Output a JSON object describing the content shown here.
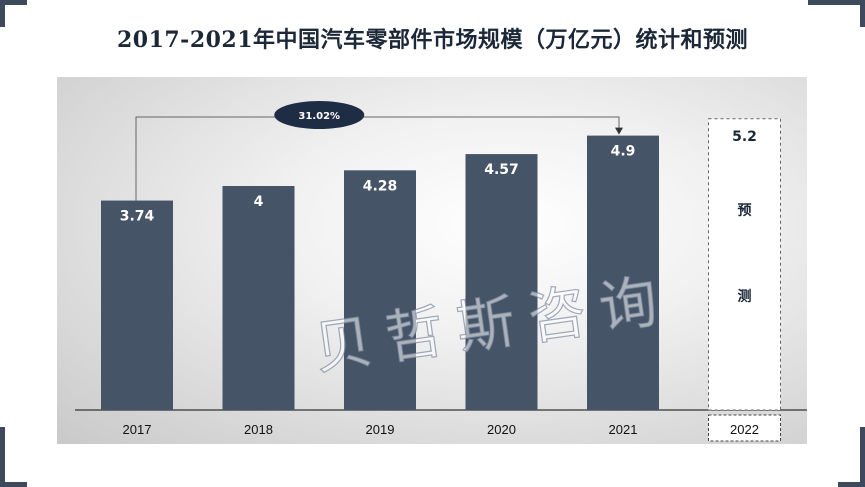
{
  "title": "2017-2021年中国汽车零部件市场规模（万亿元）统计和预测",
  "watermark": "贝哲斯咨询",
  "colors": {
    "bar": "#465467",
    "corner": "#3d4a5c",
    "title": "#1c2738",
    "bubble": "#1f2d44"
  },
  "chart_data": {
    "type": "bar",
    "categories": [
      "2017",
      "2018",
      "2019",
      "2020",
      "2021",
      "2022"
    ],
    "values": [
      3.74,
      4,
      4.28,
      4.57,
      4.9,
      5.2
    ],
    "data_labels": [
      "3.74",
      "4",
      "4.28",
      "4.57",
      "4.9",
      "5.2"
    ],
    "forecast_category": "2022",
    "forecast_label": [
      "预",
      "测"
    ],
    "growth_annotation": "31.02%",
    "ylim": [
      0,
      5.5
    ],
    "grid": false,
    "title": "2017-2021年中国汽车零部件市场规模（万亿元）统计和预测"
  }
}
